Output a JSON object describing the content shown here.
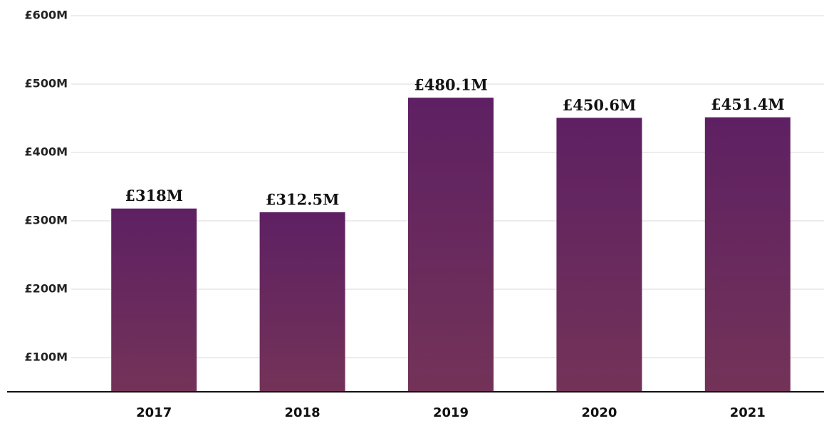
{
  "chart_data": {
    "type": "bar",
    "categories": [
      "2017",
      "2018",
      "2019",
      "2020",
      "2021"
    ],
    "values": [
      318,
      312.5,
      480.1,
      450.6,
      451.4
    ],
    "value_labels": [
      "£318M",
      "£312.5M",
      "£480.1M",
      "£450.6M",
      "£451.4M"
    ],
    "color": "#5e2063",
    "ylim": [
      50,
      600
    ],
    "yticks": [
      {
        "value": 100,
        "label": "£100M"
      },
      {
        "value": 200,
        "label": "£200M"
      },
      {
        "value": 300,
        "label": "£300M"
      },
      {
        "value": 400,
        "label": "£400M"
      },
      {
        "value": 500,
        "label": "£500M"
      },
      {
        "value": 600,
        "label": "£600M"
      }
    ],
    "grid": true
  }
}
